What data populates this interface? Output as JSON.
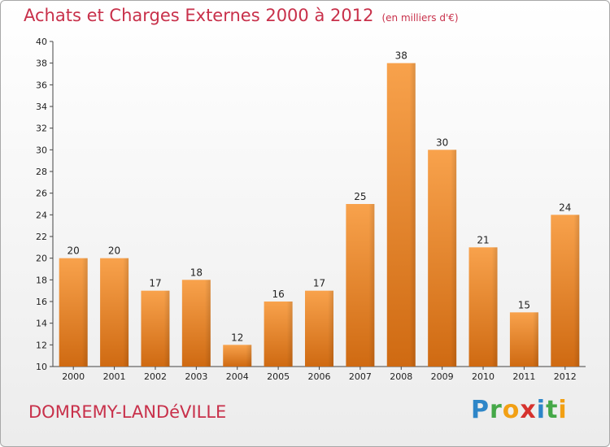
{
  "chart_data": {
    "type": "bar",
    "title": "Achats et Charges Externes 2000 à 2012",
    "subtitle": "(en milliers d'€)",
    "xlabel": "",
    "ylabel": "",
    "categories": [
      "2000",
      "2001",
      "2002",
      "2003",
      "2004",
      "2005",
      "2006",
      "2007",
      "2008",
      "2009",
      "2010",
      "2011",
      "2012"
    ],
    "values": [
      20,
      20,
      17,
      18,
      12,
      16,
      17,
      25,
      38,
      30,
      21,
      15,
      24
    ],
    "ylim": [
      10,
      40
    ],
    "yticks": [
      10,
      12,
      14,
      16,
      18,
      20,
      22,
      24,
      26,
      28,
      30,
      32,
      34,
      36,
      38,
      40
    ],
    "grid": false,
    "legend": "none",
    "bar_color": "#f08a30"
  },
  "footer": {
    "commune": "DOMREMY-LANDéVILLE",
    "logo_letters": [
      {
        "ch": "P",
        "color": "#2e86c8"
      },
      {
        "ch": "r",
        "color": "#45a848"
      },
      {
        "ch": "o",
        "color": "#f2a014"
      },
      {
        "ch": "x",
        "color": "#d6322e"
      },
      {
        "ch": "i",
        "color": "#2e86c8"
      },
      {
        "ch": "t",
        "color": "#45a848"
      },
      {
        "ch": "i",
        "color": "#f2a014"
      }
    ]
  }
}
